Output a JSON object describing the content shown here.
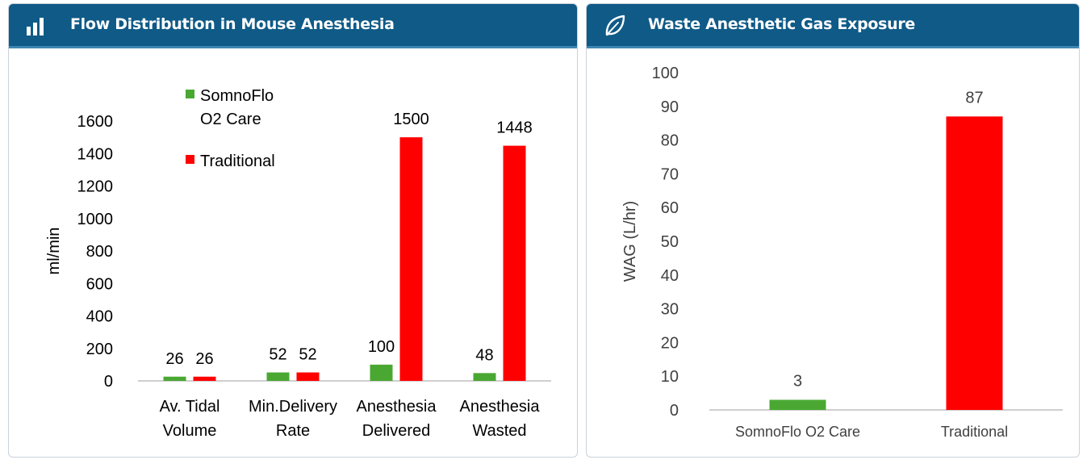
{
  "icons": {
    "left_header": "bar-chart-icon",
    "right_header": "leaf-icon"
  },
  "colors": {
    "header_bg": "#0f5a87",
    "somnoflo": "#4aa832",
    "traditional": "#ff0000",
    "axis": "#bfbfbf",
    "text": "#000000"
  },
  "chart_data": [
    {
      "type": "bar",
      "title": "Flow Distribution in Mouse Anesthesia",
      "categories": [
        [
          "Av. Tidal",
          "Volume"
        ],
        [
          "Min.Delivery",
          "Rate"
        ],
        [
          "Anesthesia",
          "Delivered"
        ],
        [
          "Anesthesia",
          "Wasted"
        ]
      ],
      "series": [
        {
          "name": [
            "SomnoFlo",
            "O2 Care"
          ],
          "values": [
            26,
            52,
            100,
            48
          ],
          "color": "#4aa832"
        },
        {
          "name": [
            "Traditional"
          ],
          "values": [
            26,
            52,
            1500,
            1448
          ],
          "color": "#ff0000"
        }
      ],
      "ylabel": "ml/min",
      "ylim": [
        0,
        1600
      ],
      "yticks": [
        0,
        200,
        400,
        600,
        800,
        1000,
        1200,
        1400,
        1600
      ],
      "grid": false,
      "legend": "top-left"
    },
    {
      "type": "bar",
      "title": "Waste Anesthetic Gas Exposure",
      "categories": [
        "SomnoFlo O2 Care",
        "Traditional"
      ],
      "values": [
        3,
        87
      ],
      "colors": [
        "#4aa832",
        "#ff0000"
      ],
      "ylabel": "WAG (L/hr)",
      "ylim": [
        0,
        100
      ],
      "yticks": [
        0,
        10,
        20,
        30,
        40,
        50,
        60,
        70,
        80,
        90,
        100
      ],
      "grid": false
    }
  ]
}
